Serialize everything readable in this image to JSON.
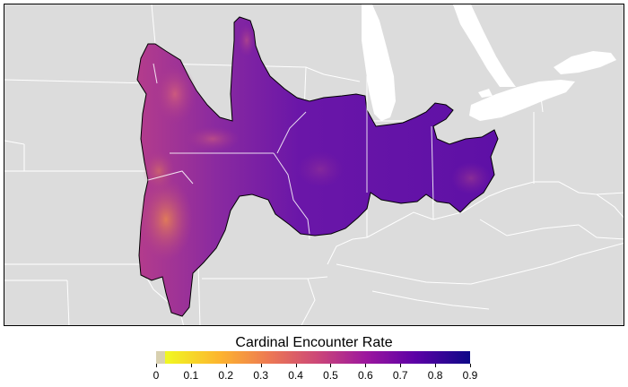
{
  "legend": {
    "title": "Cardinal Encounter Rate",
    "ticks": [
      "0",
      "0.1",
      "0.2",
      "0.3",
      "0.4",
      "0.5",
      "0.6",
      "0.7",
      "0.8",
      "0.9"
    ],
    "range": [
      0,
      0.9
    ],
    "colors": [
      "#f0f921",
      "#fdb42f",
      "#ed7953",
      "#cc4778",
      "#9c179e",
      "#5c01a6",
      "#0d0887"
    ],
    "na_color": "#d8d0b0"
  },
  "colors": {
    "background": "#dcdcdc",
    "water": "#ffffff",
    "boundary": "#ffffff",
    "range_fill": "#6a16a8",
    "range_west": "#a33696",
    "range_south": "#c85c72"
  }
}
